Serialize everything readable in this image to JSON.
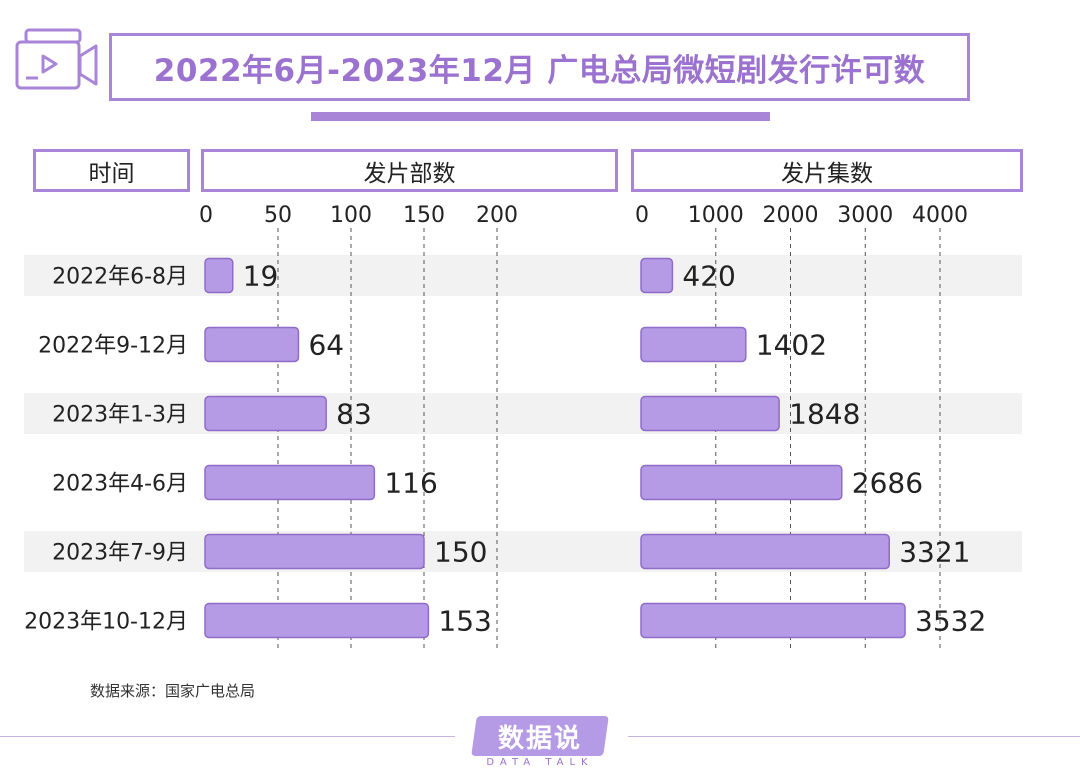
{
  "title": "2022年6月-2023年12月 广电总局微短剧发行许可数",
  "headers": {
    "time": "时间",
    "films": "发片部数",
    "episodes": "发片集数"
  },
  "source": "数据来源：国家广电总局",
  "logo": {
    "name": "数据说",
    "sub": "DATA TALK"
  },
  "colors": {
    "accent": "#a985d8",
    "bar_fill": "#b59ae6",
    "bar_stroke": "#8f6cc9",
    "row_band": "#f2f2f2",
    "title_text": "#9b72cf"
  },
  "chart_data": {
    "type": "bar",
    "orientation": "horizontal",
    "categories": [
      "2022年6-8月",
      "2022年9-12月",
      "2023年1-3月",
      "2023年4-6月",
      "2023年7-9月",
      "2023年10-12月"
    ],
    "series": [
      {
        "name": "发片部数",
        "values": [
          19,
          64,
          83,
          116,
          150,
          153
        ],
        "ticks": [
          0,
          50,
          100,
          150,
          200
        ],
        "xlim": [
          0,
          200
        ]
      },
      {
        "name": "发片集数",
        "values": [
          420,
          1402,
          1848,
          2686,
          3321,
          3532
        ],
        "ticks": [
          0,
          1000,
          2000,
          3000,
          4000
        ],
        "xlim": [
          0,
          4000
        ]
      }
    ],
    "grid": "dashed vertical"
  }
}
